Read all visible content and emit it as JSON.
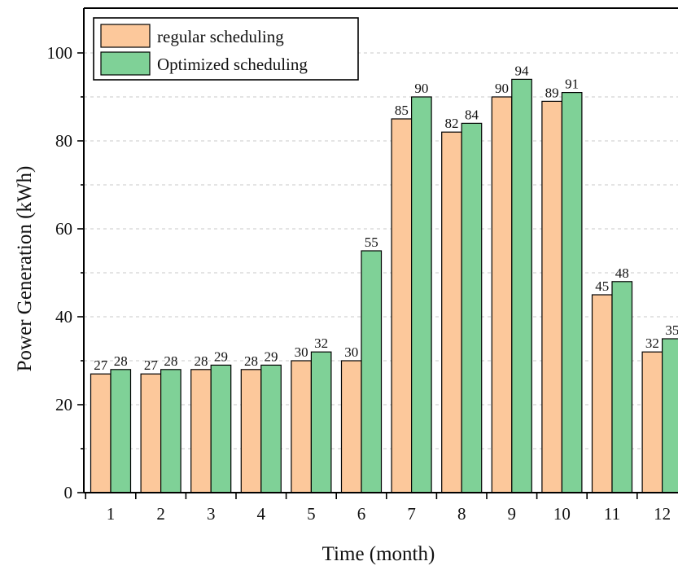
{
  "chart_data": {
    "type": "bar",
    "xlabel": "Time (month)",
    "ylabel": "Power Generation (kWh)",
    "ylim": [
      0,
      100
    ],
    "yticks": [
      0,
      20,
      40,
      60,
      80,
      100
    ],
    "grid": true,
    "legend_position": "top-left",
    "categories": [
      "1",
      "2",
      "3",
      "4",
      "5",
      "6",
      "7",
      "8",
      "9",
      "10",
      "11",
      "12"
    ],
    "series": [
      {
        "name": "regular scheduling",
        "color": "#fcc89b",
        "values": [
          27,
          27,
          28,
          28,
          30,
          30,
          85,
          82,
          90,
          89,
          45,
          32
        ]
      },
      {
        "name": "Optimized scheduling",
        "color": "#7fd197",
        "values": [
          28,
          28,
          29,
          29,
          32,
          55,
          90,
          84,
          94,
          91,
          48,
          35
        ]
      }
    ]
  }
}
